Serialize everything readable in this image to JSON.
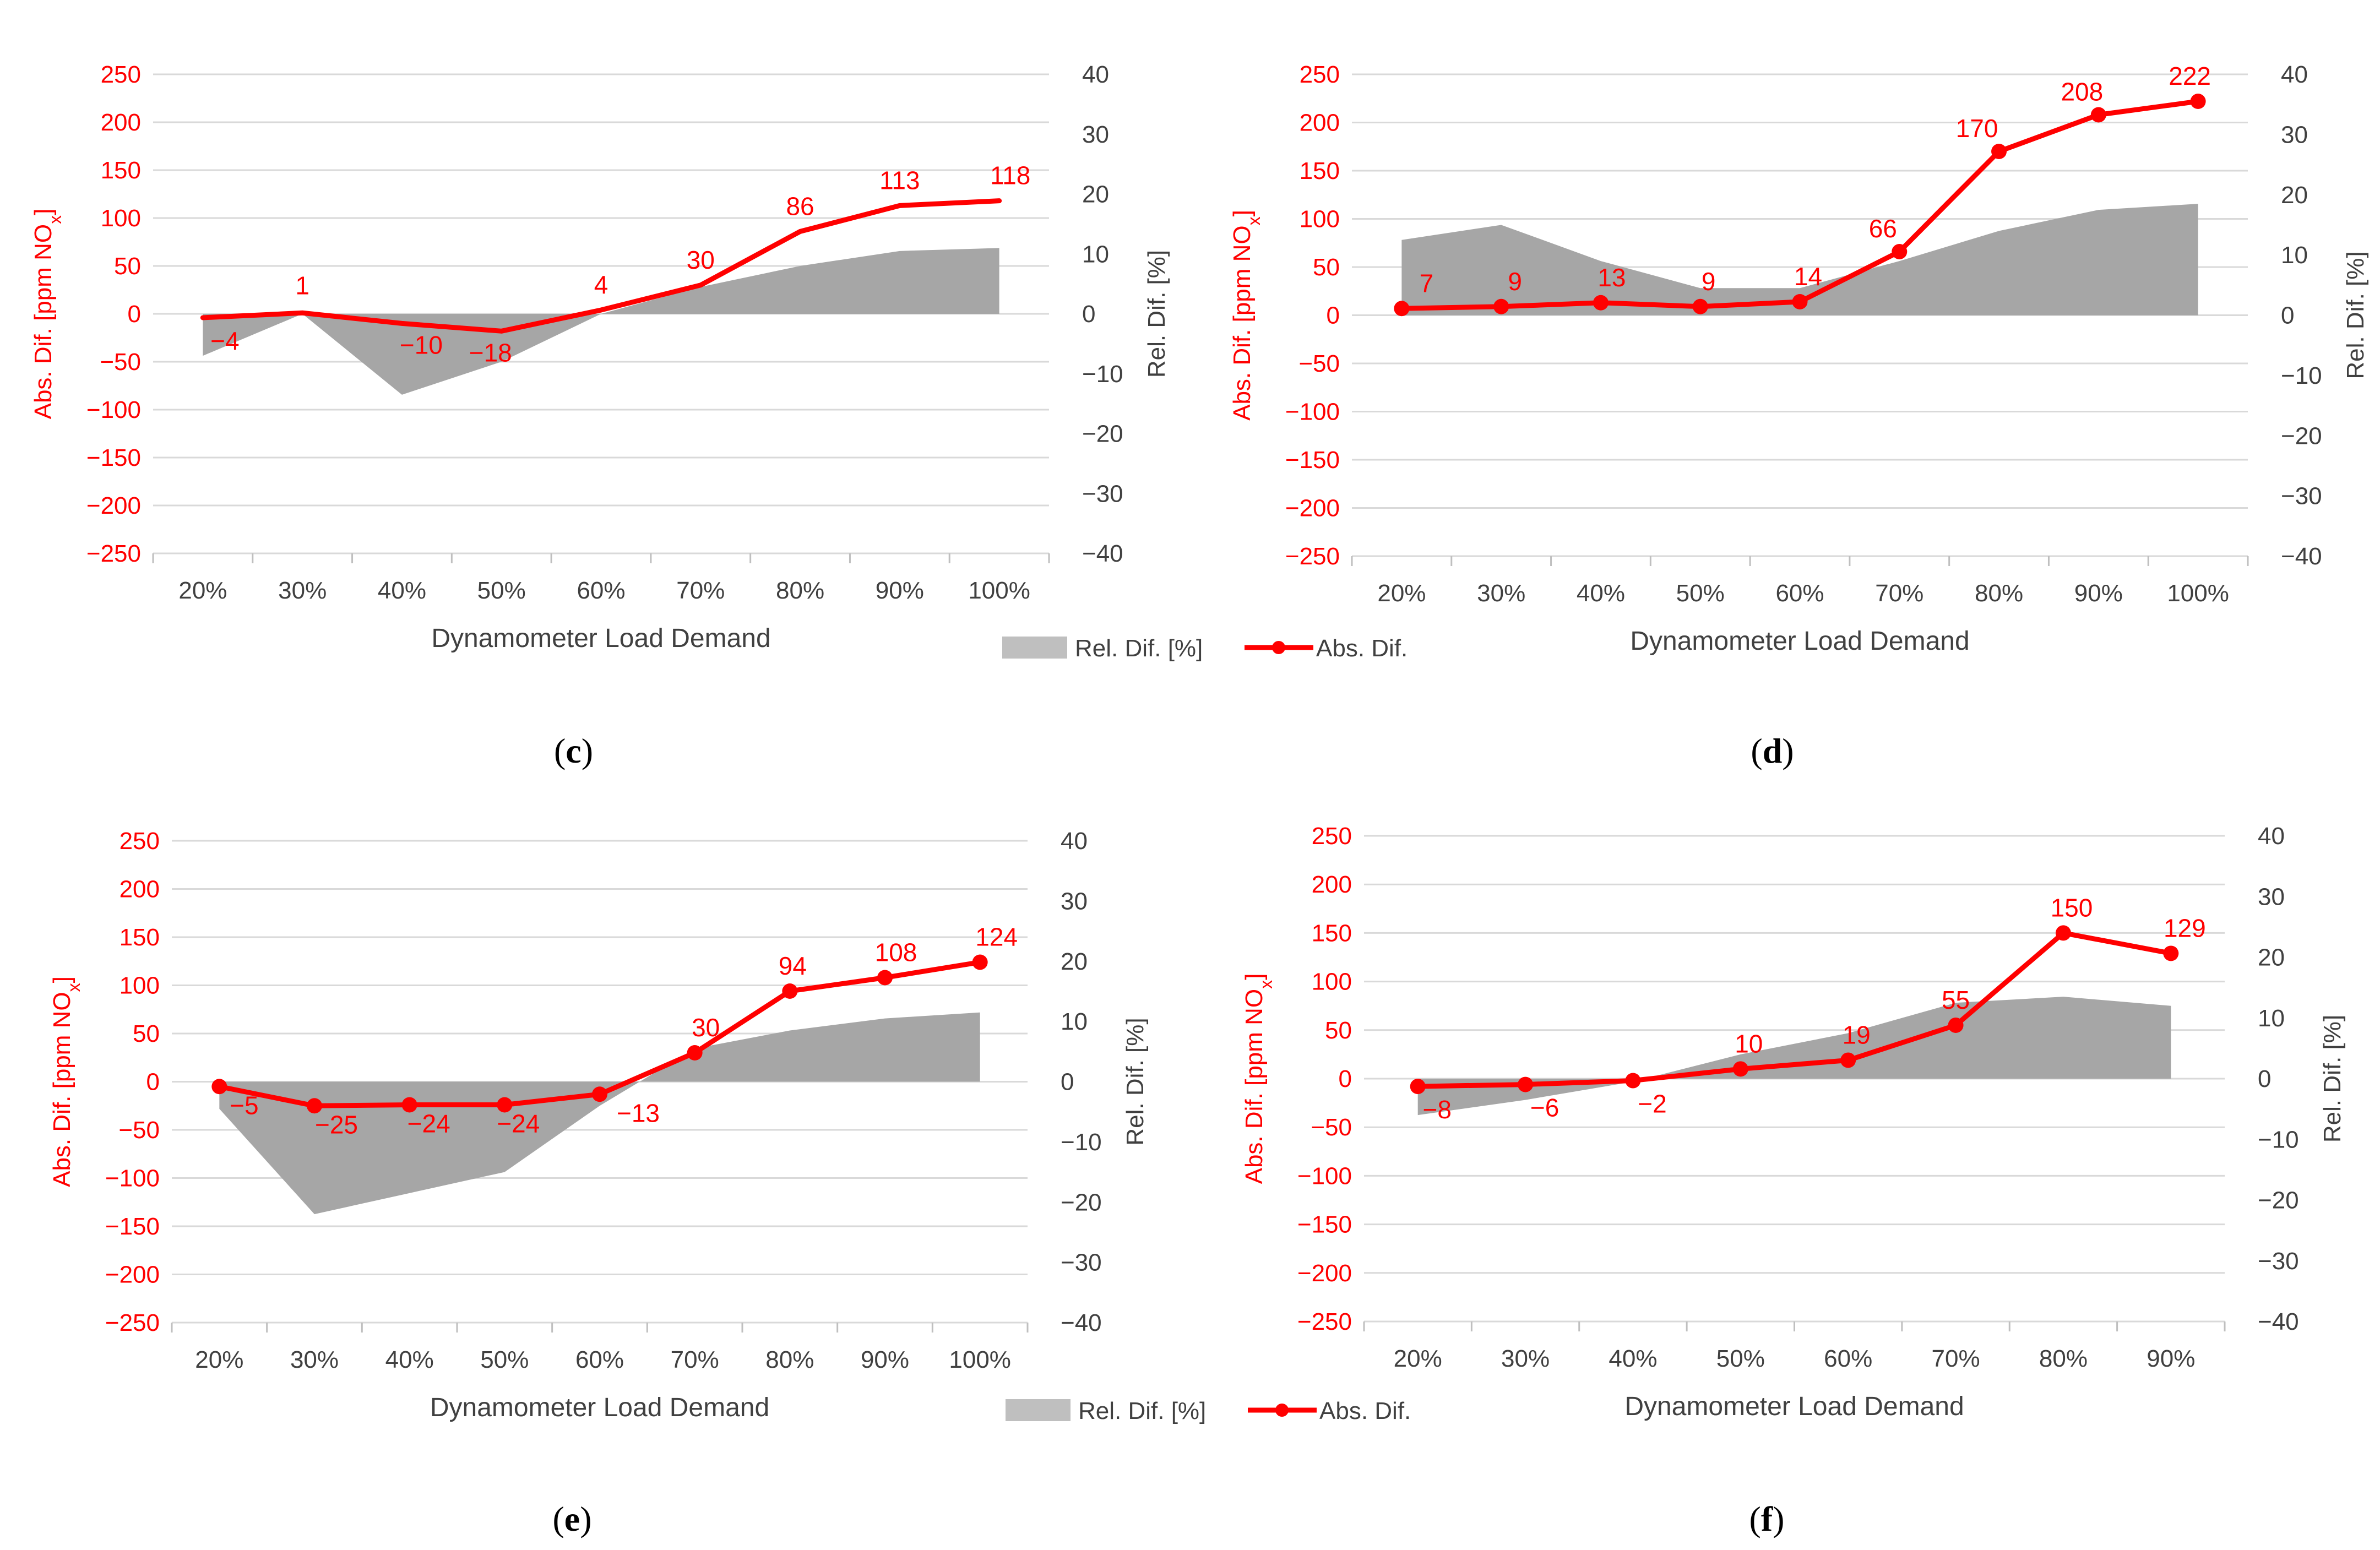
{
  "chart_data": [
    {
      "type": "line",
      "panel": "c",
      "caption": [
        "(",
        "c",
        ")"
      ],
      "categories": [
        "20%",
        "30%",
        "40%",
        "50%",
        "60%",
        "70%",
        "80%",
        "90%",
        "100%"
      ],
      "series": [
        {
          "name": "Rel. Dif. [%]",
          "type": "area",
          "axis": "right",
          "values": [
            -7,
            0,
            -13.5,
            -8,
            0,
            4.5,
            8,
            10.5,
            11
          ]
        },
        {
          "name": "Abs. Dif.",
          "type": "line",
          "axis": "left",
          "markers": false,
          "values": [
            -4,
            1,
            -10,
            -18,
            4,
            30,
            86,
            113,
            118
          ],
          "labels": [
            "−4",
            "1",
            "−10",
            "−18",
            "4",
            "30",
            "86",
            "113",
            "118"
          ]
        }
      ],
      "xlabel": "Dynamometer Load Demand",
      "ylabel": [
        "Abs. Dif. [ppm NO",
        "x",
        "]"
      ],
      "y2label": "Rel. Dif. [%]",
      "ylim": [
        -250,
        250
      ],
      "y2lim": [
        -40,
        40
      ],
      "yticks": [
        "−250",
        "−200",
        "−150",
        "−100",
        "−50",
        "0",
        "50",
        "100",
        "150",
        "200",
        "250"
      ],
      "y2ticks": [
        "−40",
        "−30",
        "−20",
        "−10",
        "0",
        "10",
        "20",
        "30",
        "40"
      ],
      "grid": true
    },
    {
      "type": "line",
      "panel": "d",
      "caption": [
        "(",
        "d",
        ")"
      ],
      "categories": [
        "20%",
        "30%",
        "40%",
        "50%",
        "60%",
        "70%",
        "80%",
        "90%",
        "100%"
      ],
      "series": [
        {
          "name": "Rel. Dif. [%]",
          "type": "area",
          "axis": "right",
          "values": [
            12.5,
            15,
            9,
            4.5,
            4.5,
            9,
            14,
            17.5,
            18.5
          ]
        },
        {
          "name": "Abs. Dif.",
          "type": "line",
          "axis": "left",
          "markers": true,
          "values": [
            7,
            9,
            13,
            9,
            14,
            66,
            170,
            208,
            222
          ],
          "labels": [
            "7",
            "9",
            "13",
            "9",
            "14",
            "66",
            "170",
            "208",
            "222"
          ]
        }
      ],
      "xlabel": "Dynamometer Load Demand",
      "ylabel": [
        "Abs. Dif. [ppm NO",
        "x",
        "]"
      ],
      "y2label": "Rel. Dif. [%]",
      "ylim": [
        -250,
        250
      ],
      "y2lim": [
        -40,
        40
      ],
      "yticks": [
        "−250",
        "−200",
        "−150",
        "−100",
        "−50",
        "0",
        "50",
        "100",
        "150",
        "200",
        "250"
      ],
      "y2ticks": [
        "−40",
        "−30",
        "−20",
        "−10",
        "0",
        "10",
        "20",
        "30",
        "40"
      ],
      "grid": true
    },
    {
      "type": "line",
      "panel": "e",
      "caption": [
        "(",
        "e",
        ")"
      ],
      "categories": [
        "20%",
        "30%",
        "40%",
        "50%",
        "60%",
        "70%",
        "80%",
        "90%",
        "100%"
      ],
      "series": [
        {
          "name": "Rel. Dif. [%]",
          "type": "area",
          "axis": "right",
          "values": [
            -4.5,
            -22,
            -18.5,
            -15,
            -4,
            5.5,
            8.5,
            10.5,
            11.5
          ]
        },
        {
          "name": "Abs. Dif.",
          "type": "line",
          "axis": "left",
          "markers": true,
          "values": [
            -5,
            -25,
            -24,
            -24,
            -13,
            30,
            94,
            108,
            124
          ],
          "labels": [
            "−5",
            "−25",
            "−24",
            "−24",
            "−13",
            "30",
            "94",
            "108",
            "124"
          ]
        }
      ],
      "xlabel": "Dynamometer Load Demand",
      "ylabel": [
        "Abs. Dif. [ppm NO",
        "x",
        "]"
      ],
      "y2label": "Rel. Dif. [%]",
      "ylim": [
        -250,
        250
      ],
      "y2lim": [
        -40,
        40
      ],
      "yticks": [
        "−250",
        "−200",
        "−150",
        "−100",
        "−50",
        "0",
        "50",
        "100",
        "150",
        "200",
        "250"
      ],
      "y2ticks": [
        "−40",
        "−30",
        "−20",
        "−10",
        "0",
        "10",
        "20",
        "30",
        "40"
      ],
      "grid": true
    },
    {
      "type": "line",
      "panel": "f",
      "caption": [
        "(",
        "f",
        ")"
      ],
      "categories": [
        "20%",
        "30%",
        "40%",
        "50%",
        "60%",
        "70%",
        "80%",
        "90%"
      ],
      "series": [
        {
          "name": "Rel. Dif. [%]",
          "type": "area",
          "axis": "right",
          "values": [
            -6,
            -3.5,
            -0.5,
            4,
            7.5,
            12.5,
            13.5,
            12
          ]
        },
        {
          "name": "Abs. Dif.",
          "type": "line",
          "axis": "left",
          "markers": true,
          "values": [
            -8,
            -6,
            -2,
            10,
            19,
            55,
            150,
            129
          ],
          "labels": [
            "−8",
            "−6",
            "−2",
            "10",
            "19",
            "55",
            "150",
            "129"
          ]
        }
      ],
      "xlabel": "Dynamometer Load Demand",
      "ylabel": [
        "Abs. Dif. [ppm NO",
        "x",
        "]"
      ],
      "y2label": "Rel. Dif. [%]",
      "ylim": [
        -250,
        250
      ],
      "y2lim": [
        -40,
        40
      ],
      "yticks": [
        "−250",
        "−200",
        "−150",
        "−100",
        "−50",
        "0",
        "50",
        "100",
        "150",
        "200",
        "250"
      ],
      "y2ticks": [
        "−40",
        "−30",
        "−20",
        "−10",
        "0",
        "10",
        "20",
        "30",
        "40"
      ],
      "grid": true
    }
  ],
  "legends": [
    {
      "area_label": "Rel. Dif. [%]",
      "line_label": "Abs. Dif."
    },
    {
      "area_label": "Rel. Dif. [%]",
      "line_label": "Abs. Dif."
    }
  ],
  "colors": {
    "line": "#ff0000",
    "area": "#a6a6a6",
    "legend_area": "#bfbfbf",
    "grid": "#d9d9d9",
    "axis": "#bfbfbf"
  }
}
